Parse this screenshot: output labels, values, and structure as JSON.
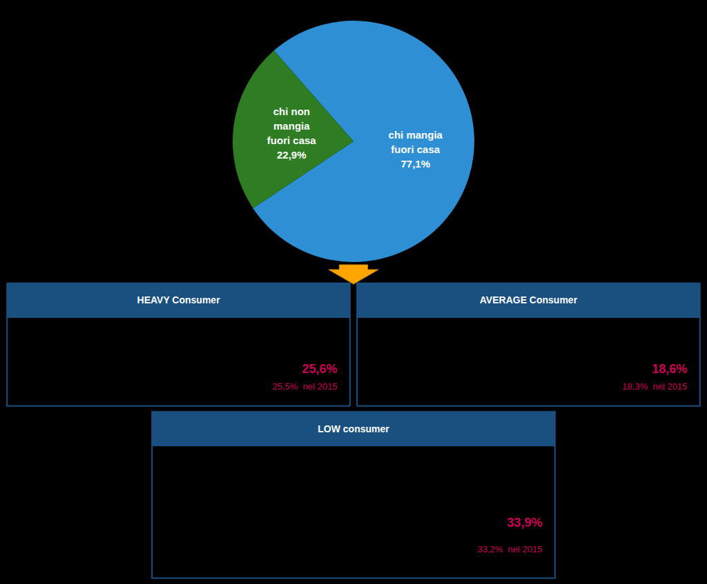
{
  "chart_data": {
    "type": "pie",
    "categories": [
      "chi mangia\nfuori casa",
      "chi non\nmangia\nfuori casa"
    ],
    "values": [
      77.1,
      22.9
    ],
    "value_labels": [
      "77,1%",
      "22,9%"
    ],
    "colors": [
      "#2e8fd4",
      "#2e7d22"
    ],
    "data_labels": true,
    "annotations": [
      {
        "header": "HEAVY Consumer",
        "lines": [
          "25,6%",
          "25,5%  nel 2015"
        ]
      },
      {
        "header": "AVERAGE Consumer",
        "lines": [
          "18,6%",
          "18,3%  nel 2015"
        ]
      },
      {
        "header": "LOW consumer",
        "lines": [
          "33,9%",
          "33,2%  nel 2015"
        ]
      }
    ]
  }
}
